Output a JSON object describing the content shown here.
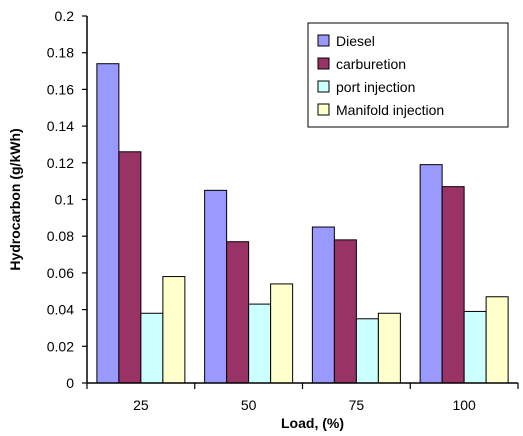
{
  "chart_data": {
    "type": "bar",
    "title": "",
    "xlabel": "Load, (%)",
    "ylabel": "Hydrocarbon (g/kWh)",
    "categories": [
      "25",
      "50",
      "75",
      "100"
    ],
    "ylim": [
      0,
      0.2
    ],
    "yticks": [
      "0",
      "0.02",
      "0.04",
      "0.06",
      "0.08",
      "0.1",
      "0.12",
      "0.14",
      "0.16",
      "0.18",
      "0.2"
    ],
    "grid": false,
    "legend_position": "top-right",
    "series": [
      {
        "name": "Diesel",
        "color": "#9999ff",
        "values": [
          0.174,
          0.105,
          0.085,
          0.119
        ]
      },
      {
        "name": "carburetion",
        "color": "#993366",
        "values": [
          0.126,
          0.077,
          0.078,
          0.107
        ]
      },
      {
        "name": "port injection",
        "color": "#ccffff",
        "values": [
          0.038,
          0.043,
          0.035,
          0.039
        ]
      },
      {
        "name": "Manifold injection",
        "color": "#ffffcc",
        "values": [
          0.058,
          0.054,
          0.038,
          0.047
        ]
      }
    ]
  }
}
